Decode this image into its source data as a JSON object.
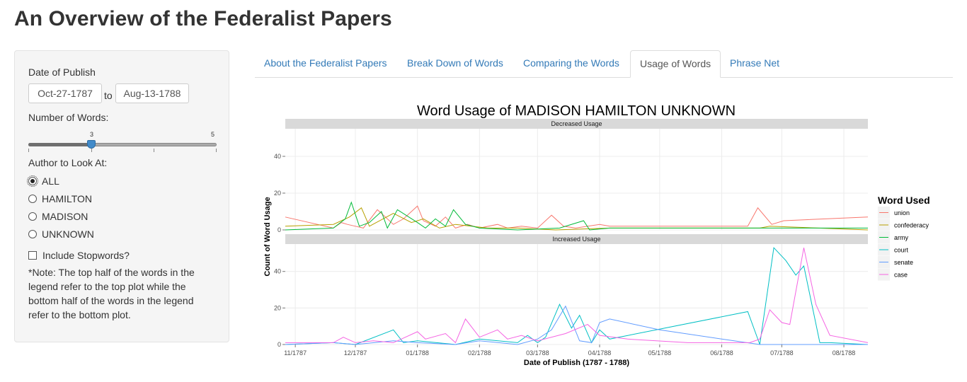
{
  "page": {
    "title": "An Overview of the Federalist Papers"
  },
  "sidebar": {
    "date_label": "Date of Publish",
    "date_start": "Oct-27-1787",
    "date_separator": "to",
    "date_end": "Aug-13-1788",
    "words_label": "Number of Words:",
    "slider": {
      "value": 3,
      "max": 5,
      "value_label": "3",
      "max_label": "5"
    },
    "author_label": "Author to Look At:",
    "authors": [
      {
        "label": "ALL",
        "selected": true
      },
      {
        "label": "HAMILTON",
        "selected": false
      },
      {
        "label": "MADISON",
        "selected": false
      },
      {
        "label": "UNKNOWN",
        "selected": false
      }
    ],
    "stopwords_label": "Include Stopwords?",
    "stopwords_checked": false,
    "note": "*Note: The top half of the words in the legend refer to the top plot while the bottom half of the words in the legend refer to the bottom plot."
  },
  "tabs": [
    {
      "label": "About the Federalist Papers",
      "active": false
    },
    {
      "label": "Break Down of Words",
      "active": false
    },
    {
      "label": "Comparing the Words",
      "active": false
    },
    {
      "label": "Usage of Words",
      "active": true
    },
    {
      "label": "Phrase Net",
      "active": false
    }
  ],
  "colors": {
    "union": "#f8766d",
    "confederacy": "#b79f00",
    "army": "#00ba38",
    "court": "#00bfc4",
    "senate": "#619cff",
    "case": "#f564e3",
    "tab_link": "#337ab7"
  },
  "chart_data": {
    "type": "line",
    "title": "Word Usage of  MADISON HAMILTON UNKNOWN",
    "xlabel": "Date of Publish (1787 - 1788)",
    "ylabel": "Count of Word Usage",
    "x_ticks": [
      "11/1787",
      "12/1787",
      "01/1788",
      "02/1788",
      "03/1788",
      "04/1788",
      "05/1788",
      "06/1788",
      "07/1788",
      "08/1788"
    ],
    "xlim": [
      "1787-10-27",
      "1788-08-13"
    ],
    "ylim": [
      0,
      55
    ],
    "y_ticks": [
      0,
      20,
      40
    ],
    "legend_title": "Word Used",
    "legend_position": "right",
    "panels": [
      {
        "strip": "Decreased Usage",
        "series": [
          {
            "name": "union",
            "x": [
              "1787-10-27",
              "1787-11-20",
              "1787-11-24",
              "1787-11-27",
              "1787-12-01",
              "1787-12-05",
              "1787-12-12",
              "1787-12-20",
              "1787-12-25",
              "1788-01-01",
              "1788-01-04",
              "1788-01-10",
              "1788-01-15",
              "1788-01-20",
              "1788-01-26",
              "1788-02-01",
              "1788-02-10",
              "1788-02-15",
              "1788-02-22",
              "1788-03-01",
              "1788-03-08",
              "1788-03-14",
              "1788-03-20",
              "1788-04-01",
              "1788-04-06",
              "1788-06-14",
              "1788-06-19",
              "1788-06-26",
              "1788-07-02",
              "1788-08-13"
            ],
            "y": [
              7,
              1,
              4,
              3,
              2,
              1,
              11,
              3,
              6,
              13,
              5,
              2,
              7,
              1,
              3,
              1,
              3,
              1,
              2,
              1,
              8,
              2,
              1,
              3,
              2,
              2,
              12,
              3,
              5,
              7
            ]
          },
          {
            "name": "confederacy",
            "x": [
              "1787-10-27",
              "1787-11-20",
              "1787-11-28",
              "1787-12-04",
              "1787-12-08",
              "1787-12-20",
              "1787-12-29",
              "1788-01-04",
              "1788-01-12",
              "1788-01-20",
              "1788-01-28",
              "1788-02-05",
              "1788-02-20",
              "1788-03-10",
              "1788-04-06",
              "1788-06-20",
              "1788-06-25",
              "1788-08-13"
            ],
            "y": [
              2,
              3,
              7,
              12,
              2,
              9,
              4,
              6,
              1,
              3,
              2,
              1,
              1,
              0,
              1,
              1,
              2,
              0
            ]
          },
          {
            "name": "army",
            "x": [
              "1787-10-27",
              "1787-11-20",
              "1787-11-26",
              "1787-11-29",
              "1787-12-03",
              "1787-12-08",
              "1787-12-14",
              "1787-12-17",
              "1787-12-22",
              "1788-01-01",
              "1788-01-05",
              "1788-01-10",
              "1788-01-15",
              "1788-01-19",
              "1788-01-25",
              "1788-02-01",
              "1788-02-20",
              "1788-03-12",
              "1788-03-24",
              "1788-03-27",
              "1788-04-06",
              "1788-06-20",
              "1788-08-13"
            ],
            "y": [
              0,
              1,
              6,
              15,
              2,
              4,
              10,
              1,
              11,
              4,
              1,
              6,
              2,
              11,
              3,
              1,
              0,
              1,
              5,
              0,
              1,
              1,
              1
            ]
          }
        ]
      },
      {
        "strip": "Increased Usage",
        "series": [
          {
            "name": "court",
            "x": [
              "1787-10-27",
              "1787-11-20",
              "1787-12-01",
              "1787-12-20",
              "1787-12-25",
              "1788-01-01",
              "1788-01-20",
              "1788-02-01",
              "1788-02-20",
              "1788-02-25",
              "1788-03-01",
              "1788-03-05",
              "1788-03-12",
              "1788-03-18",
              "1788-03-22",
              "1788-03-28",
              "1788-04-01",
              "1788-04-06",
              "1788-06-14",
              "1788-06-20",
              "1788-06-27",
              "1788-07-03",
              "1788-07-08",
              "1788-07-12",
              "1788-07-20",
              "1788-07-25",
              "1788-08-13"
            ],
            "y": [
              0,
              1,
              0,
              8,
              1,
              2,
              0,
              3,
              1,
              5,
              1,
              4,
              22,
              9,
              16,
              1,
              8,
              3,
              18,
              0,
              53,
              46,
              38,
              43,
              1,
              1,
              0
            ]
          },
          {
            "name": "senate",
            "x": [
              "1787-10-27",
              "1787-11-20",
              "1787-12-01",
              "1787-12-20",
              "1788-01-01",
              "1788-01-20",
              "1788-02-01",
              "1788-02-20",
              "1788-03-01",
              "1788-03-08",
              "1788-03-15",
              "1788-03-22",
              "1788-03-28",
              "1788-04-01",
              "1788-04-06",
              "1788-05-01",
              "1788-06-01",
              "1788-06-20",
              "1788-07-01",
              "1788-08-13"
            ],
            "y": [
              0,
              1,
              0,
              2,
              1,
              0,
              2,
              0,
              3,
              8,
              21,
              2,
              1,
              12,
              14,
              8,
              3,
              0,
              0,
              0
            ]
          },
          {
            "name": "case",
            "x": [
              "1787-10-27",
              "1787-11-20",
              "1787-11-25",
              "1787-12-01",
              "1787-12-10",
              "1787-12-20",
              "1788-01-01",
              "1788-01-05",
              "1788-01-15",
              "1788-01-20",
              "1788-01-25",
              "1788-02-01",
              "1788-02-10",
              "1788-02-15",
              "1788-02-22",
              "1788-03-01",
              "1788-03-15",
              "1788-03-26",
              "1788-04-01",
              "1788-04-15",
              "1788-05-15",
              "1788-06-15",
              "1788-06-20",
              "1788-06-25",
              "1788-07-01",
              "1788-07-05",
              "1788-07-12",
              "1788-07-18",
              "1788-07-25",
              "1788-08-13"
            ],
            "y": [
              1,
              1,
              4,
              1,
              2,
              1,
              7,
              3,
              6,
              1,
              14,
              4,
              8,
              3,
              5,
              2,
              6,
              11,
              5,
              3,
              1,
              1,
              3,
              19,
              12,
              11,
              53,
              22,
              5,
              1
            ]
          }
        ]
      }
    ]
  }
}
